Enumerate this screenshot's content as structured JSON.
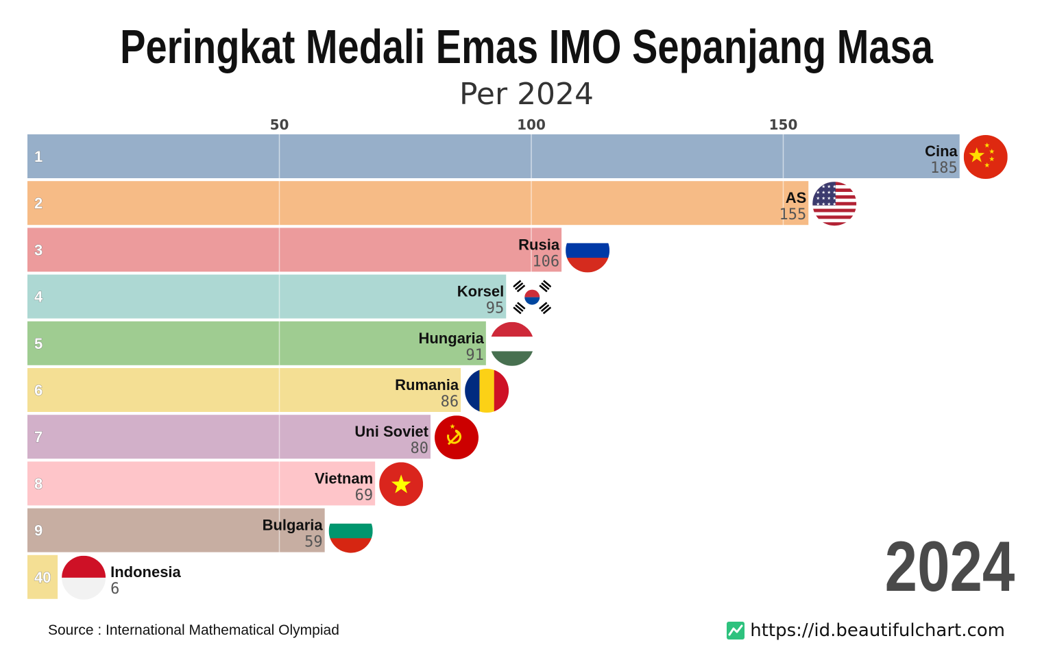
{
  "title": "Peringkat Medali Emas IMO Sepanjang Masa",
  "subtitle": "Per 2024",
  "year_label": "2024",
  "source": "Source : International Mathematical Olympiad",
  "website": "https://id.beautifulchart.com",
  "chart_data": {
    "type": "bar",
    "orientation": "horizontal",
    "title": "Peringkat Medali Emas IMO Sepanjang Masa",
    "subtitle": "Per 2024",
    "xlim": [
      0,
      190
    ],
    "xticks": [
      50,
      100,
      150
    ],
    "grid": true,
    "bars": [
      {
        "rank": "1",
        "name": "Cina",
        "value": 185,
        "color": "#97afc9",
        "flag": "china-flag-icon"
      },
      {
        "rank": "2",
        "name": "AS",
        "value": 155,
        "color": "#f6bb86",
        "flag": "usa-flag-icon"
      },
      {
        "rank": "3",
        "name": "Rusia",
        "value": 106,
        "color": "#ec9b9c",
        "flag": "russia-flag-icon"
      },
      {
        "rank": "4",
        "name": "Korsel",
        "value": 95,
        "color": "#add8d3",
        "flag": "south-korea-flag-icon"
      },
      {
        "rank": "5",
        "name": "Hungaria",
        "value": 91,
        "color": "#9fcc91",
        "flag": "hungary-flag-icon"
      },
      {
        "rank": "6",
        "name": "Rumania",
        "value": 86,
        "color": "#f4df94",
        "flag": "romania-flag-icon"
      },
      {
        "rank": "7",
        "name": "Uni Soviet",
        "value": 80,
        "color": "#d2b0c9",
        "flag": "soviet-union-flag-icon"
      },
      {
        "rank": "8",
        "name": "Vietnam",
        "value": 69,
        "color": "#fec5c9",
        "flag": "vietnam-flag-icon"
      },
      {
        "rank": "9",
        "name": "Bulgaria",
        "value": 59,
        "color": "#c7aea2",
        "flag": "bulgaria-flag-icon"
      },
      {
        "rank": "40",
        "name": "Indonesia",
        "value": 6,
        "color": "#f4df94",
        "flag": "indonesia-flag-icon"
      }
    ]
  }
}
